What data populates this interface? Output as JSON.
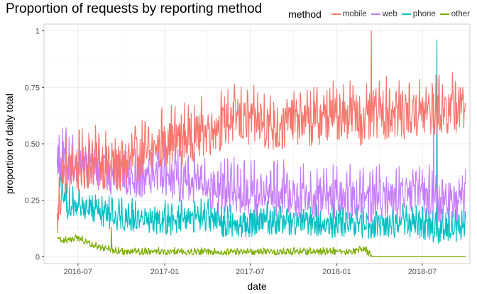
{
  "chart_data": {
    "type": "line",
    "title": "Proportion of requests by reporting method",
    "xlabel": "date",
    "ylabel": "proportion of daily total",
    "legend_title": "method",
    "legend_position": "top-right",
    "grid": true,
    "x_range": [
      "2016-04-20",
      "2018-10-10"
    ],
    "x_ticks": [
      "2016-07",
      "2017-01",
      "2017-07",
      "2018-01",
      "2018-07"
    ],
    "ylim": [
      -0.03,
      1.03
    ],
    "y_ticks": [
      0,
      0.25,
      0.5,
      0.75,
      1
    ],
    "y_tick_labels": [
      "0",
      "0.25",
      "0.50",
      "0.75",
      "1"
    ],
    "series": [
      {
        "name": "mobile",
        "color": "#F8766D",
        "dates": [
          "2016-05-18",
          "2016-06-01",
          "2016-07-01",
          "2016-08-01",
          "2016-09-01",
          "2016-10-01",
          "2016-11-01",
          "2016-12-01",
          "2017-01-01",
          "2017-02-01",
          "2017-03-01",
          "2017-04-01",
          "2017-05-01",
          "2017-06-01",
          "2017-07-01",
          "2017-08-01",
          "2017-09-01",
          "2017-10-01",
          "2017-11-01",
          "2017-12-01",
          "2018-01-01",
          "2018-02-01",
          "2018-03-01",
          "2018-03-25",
          "2018-04-01",
          "2018-05-01",
          "2018-06-01",
          "2018-07-01",
          "2018-08-01",
          "2018-09-01",
          "2018-10-01"
        ],
        "values": [
          0.15,
          0.36,
          0.38,
          0.41,
          0.39,
          0.38,
          0.43,
          0.44,
          0.5,
          0.5,
          0.52,
          0.54,
          0.57,
          0.6,
          0.58,
          0.58,
          0.55,
          0.6,
          0.58,
          0.6,
          0.61,
          0.62,
          0.58,
          0.62,
          0.62,
          0.62,
          0.62,
          0.62,
          0.63,
          0.64,
          0.66
        ],
        "spikes": [
          {
            "date": "2018-03-15",
            "value": 1.0
          }
        ]
      },
      {
        "name": "web",
        "color": "#C77CFF",
        "dates": [
          "2016-05-18",
          "2016-06-01",
          "2016-07-01",
          "2016-08-01",
          "2016-09-01",
          "2016-10-01",
          "2016-11-01",
          "2016-12-01",
          "2017-01-01",
          "2017-02-01",
          "2017-03-01",
          "2017-04-01",
          "2017-05-01",
          "2017-06-01",
          "2017-07-01",
          "2017-08-01",
          "2017-09-01",
          "2017-10-01",
          "2017-11-01",
          "2017-12-01",
          "2018-01-01",
          "2018-02-01",
          "2018-03-01",
          "2018-04-01",
          "2018-05-01",
          "2018-06-01",
          "2018-07-01",
          "2018-08-01",
          "2018-09-01",
          "2018-10-01"
        ],
        "values": [
          0.45,
          0.42,
          0.4,
          0.39,
          0.36,
          0.36,
          0.34,
          0.37,
          0.36,
          0.33,
          0.33,
          0.3,
          0.28,
          0.28,
          0.27,
          0.27,
          0.27,
          0.26,
          0.25,
          0.26,
          0.25,
          0.25,
          0.23,
          0.25,
          0.24,
          0.25,
          0.27,
          0.22,
          0.24,
          0.24
        ],
        "spikes": [
          {
            "date": "2018-07-25",
            "value": 0.6
          }
        ]
      },
      {
        "name": "phone",
        "color": "#00BFC4",
        "dates": [
          "2016-05-18",
          "2016-06-01",
          "2016-07-01",
          "2016-08-01",
          "2016-09-01",
          "2016-10-01",
          "2016-11-01",
          "2016-12-01",
          "2017-01-01",
          "2017-02-01",
          "2017-03-01",
          "2017-04-01",
          "2017-05-01",
          "2017-06-01",
          "2017-07-01",
          "2017-08-01",
          "2017-09-01",
          "2017-10-01",
          "2017-11-01",
          "2017-12-01",
          "2018-01-01",
          "2018-02-01",
          "2018-03-01",
          "2018-04-01",
          "2018-05-01",
          "2018-06-01",
          "2018-07-01",
          "2018-08-01",
          "2018-09-01",
          "2018-10-01"
        ],
        "values": [
          0.45,
          0.23,
          0.2,
          0.21,
          0.18,
          0.17,
          0.16,
          0.16,
          0.15,
          0.15,
          0.16,
          0.16,
          0.14,
          0.14,
          0.14,
          0.15,
          0.15,
          0.14,
          0.15,
          0.13,
          0.14,
          0.15,
          0.13,
          0.14,
          0.14,
          0.14,
          0.13,
          0.11,
          0.12,
          0.11
        ],
        "spikes": [
          {
            "date": "2016-05-12",
            "value": 0.74
          },
          {
            "date": "2018-08-01",
            "value": 0.96
          }
        ]
      },
      {
        "name": "other",
        "color": "#7CAE00",
        "dates": [
          "2016-05-18",
          "2016-06-01",
          "2016-07-01",
          "2016-08-01",
          "2016-09-01",
          "2016-10-01",
          "2016-11-01",
          "2016-12-01",
          "2017-01-01",
          "2017-02-01",
          "2017-03-01",
          "2017-04-01",
          "2017-05-01",
          "2017-06-01",
          "2017-07-01",
          "2017-08-01",
          "2017-09-01",
          "2017-10-01",
          "2017-11-01",
          "2017-12-01",
          "2018-01-01",
          "2018-02-01",
          "2018-03-01",
          "2018-03-18",
          "2018-04-01",
          "2018-05-01",
          "2018-06-01",
          "2018-07-01",
          "2018-08-01",
          "2018-09-01",
          "2018-10-01"
        ],
        "values": [
          0.08,
          0.07,
          0.08,
          0.05,
          0.03,
          0.02,
          0.02,
          0.02,
          0.02,
          0.02,
          0.02,
          0.02,
          0.02,
          0.02,
          0.02,
          0.02,
          0.02,
          0.02,
          0.02,
          0.02,
          0.02,
          0.02,
          0.03,
          0.0,
          0.0,
          0.0,
          0.0,
          0.0,
          0.0,
          0.0,
          0.0
        ],
        "spikes": [
          {
            "date": "2016-09-10",
            "value": 0.13
          }
        ]
      }
    ]
  }
}
